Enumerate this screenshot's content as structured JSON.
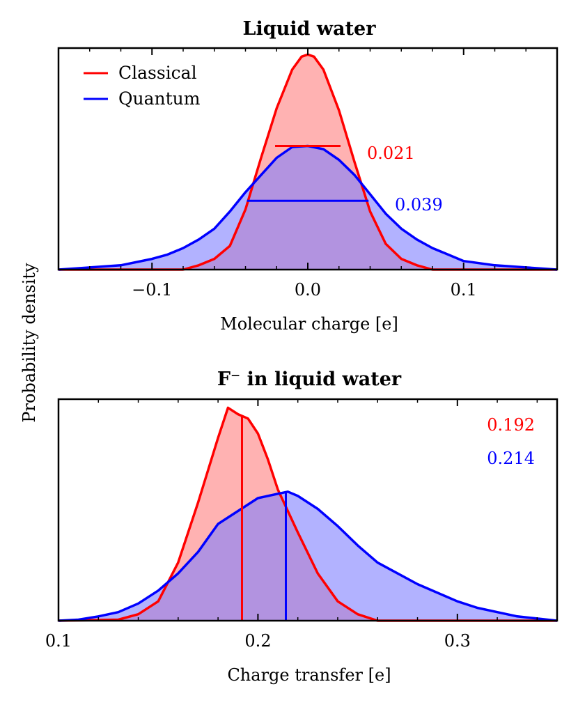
{
  "figure": {
    "ylabel": "Probability density"
  },
  "chart_data": [
    {
      "type": "area",
      "title": "Liquid water",
      "xlabel": "Molecular charge [e]",
      "ylabel": "Probability density",
      "xlim": [
        -0.16,
        0.16
      ],
      "ylim": [
        0,
        1.03
      ],
      "xticks": [
        -0.1,
        0.0,
        0.1
      ],
      "xtick_labels": [
        "−0.1",
        "0.0",
        "0.1"
      ],
      "legend": {
        "position": "top-left",
        "entries": [
          "Classical",
          "Quantum"
        ]
      },
      "colors": {
        "classical": "#ff0000",
        "quantum": "#0000ff",
        "classical_fill": "#ff7f7f",
        "quantum_fill": "#7f7fff"
      },
      "series": [
        {
          "name": "Classical",
          "x": [
            -0.16,
            -0.08,
            -0.07,
            -0.06,
            -0.05,
            -0.04,
            -0.03,
            -0.02,
            -0.01,
            -0.004,
            0.0,
            0.004,
            0.01,
            0.02,
            0.03,
            0.04,
            0.05,
            0.06,
            0.07,
            0.08,
            0.16
          ],
          "y": [
            0.0,
            0.0,
            0.02,
            0.05,
            0.11,
            0.28,
            0.52,
            0.75,
            0.93,
            0.99,
            1.0,
            0.99,
            0.93,
            0.74,
            0.5,
            0.27,
            0.12,
            0.05,
            0.02,
            0.0,
            0.0
          ],
          "fwhm": 0.021,
          "fwhm_label": "0.021",
          "fwhm_bar": {
            "x1": -0.021,
            "x2": 0.021,
            "y": 0.575
          }
        },
        {
          "name": "Quantum",
          "x": [
            -0.16,
            -0.14,
            -0.12,
            -0.1,
            -0.09,
            -0.08,
            -0.07,
            -0.06,
            -0.05,
            -0.04,
            -0.03,
            -0.02,
            -0.01,
            0.0,
            0.01,
            0.02,
            0.03,
            0.04,
            0.05,
            0.06,
            0.07,
            0.08,
            0.09,
            0.1,
            0.12,
            0.14,
            0.16
          ],
          "y": [
            0.0,
            0.01,
            0.02,
            0.05,
            0.07,
            0.1,
            0.14,
            0.19,
            0.27,
            0.36,
            0.44,
            0.52,
            0.57,
            0.575,
            0.56,
            0.51,
            0.44,
            0.35,
            0.26,
            0.19,
            0.14,
            0.1,
            0.07,
            0.04,
            0.02,
            0.01,
            0.0
          ],
          "fwhm": 0.039,
          "fwhm_label": "0.039",
          "fwhm_bar": {
            "x1": -0.039,
            "x2": 0.039,
            "y": 0.32
          }
        }
      ]
    },
    {
      "type": "area",
      "title": "F⁻ in liquid water",
      "xlabel": "Charge transfer [e]",
      "ylabel": "Probability density",
      "xlim": [
        0.1,
        0.35
      ],
      "ylim": [
        0,
        1.03
      ],
      "xticks": [
        0.1,
        0.2,
        0.3
      ],
      "xtick_labels": [
        "0.1",
        "0.2",
        "0.3"
      ],
      "colors": {
        "classical": "#ff0000",
        "quantum": "#0000ff",
        "classical_fill": "#ff7f7f",
        "quantum_fill": "#7f7fff"
      },
      "series": [
        {
          "name": "Classical",
          "x": [
            0.1,
            0.13,
            0.14,
            0.15,
            0.16,
            0.17,
            0.18,
            0.185,
            0.19,
            0.195,
            0.2,
            0.205,
            0.21,
            0.22,
            0.23,
            0.24,
            0.25,
            0.26,
            0.27,
            0.28,
            0.35
          ],
          "y": [
            0.0,
            0.005,
            0.03,
            0.09,
            0.27,
            0.55,
            0.85,
            0.99,
            0.96,
            0.94,
            0.87,
            0.75,
            0.61,
            0.41,
            0.22,
            0.09,
            0.03,
            0.0,
            0.0,
            0.0,
            0.0
          ],
          "mean": 0.192,
          "mean_label": "0.192",
          "mean_line": {
            "x": 0.192,
            "y_top": 0.955
          }
        },
        {
          "name": "Quantum",
          "x": [
            0.1,
            0.11,
            0.12,
            0.13,
            0.14,
            0.15,
            0.16,
            0.17,
            0.18,
            0.19,
            0.2,
            0.21,
            0.215,
            0.22,
            0.23,
            0.24,
            0.25,
            0.26,
            0.27,
            0.28,
            0.29,
            0.3,
            0.31,
            0.32,
            0.33,
            0.34,
            0.35
          ],
          "y": [
            0.0,
            0.005,
            0.02,
            0.04,
            0.08,
            0.14,
            0.22,
            0.32,
            0.45,
            0.51,
            0.57,
            0.59,
            0.6,
            0.58,
            0.52,
            0.44,
            0.35,
            0.27,
            0.22,
            0.17,
            0.13,
            0.09,
            0.06,
            0.04,
            0.02,
            0.01,
            0.0
          ],
          "mean": 0.214,
          "mean_label": "0.214",
          "mean_line": {
            "x": 0.214,
            "y_top": 0.595
          }
        }
      ]
    }
  ]
}
